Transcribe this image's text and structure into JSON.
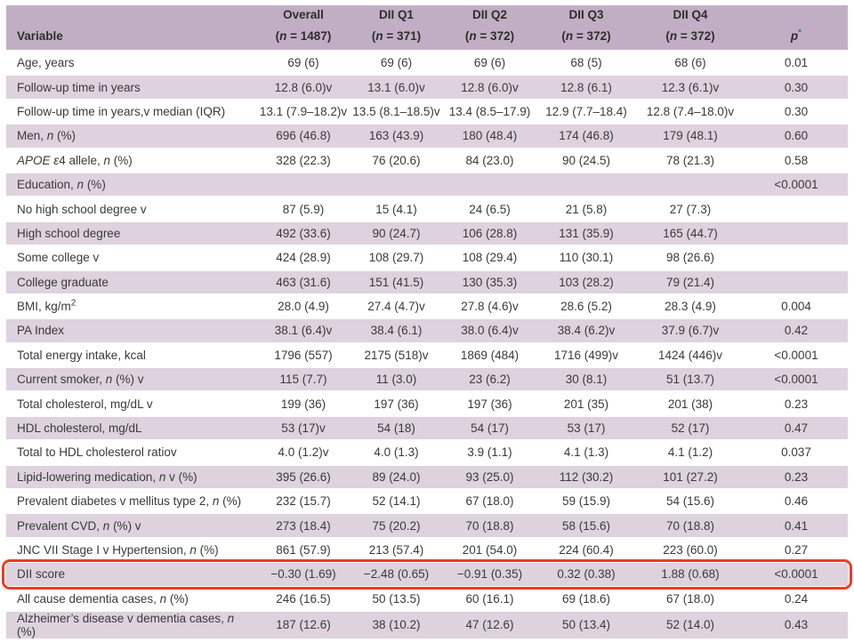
{
  "colors": {
    "header_bg": "#c2aec4",
    "stripe_bg": "#ddd2de",
    "row_bg": "#ffffff",
    "text": "#3a3a3a",
    "header_text": "#2d2d2d",
    "p_star_blue": "#2e74c0",
    "highlight_red": "#ef3b24"
  },
  "table": {
    "columns": [
      {
        "key": "variable",
        "line1": "",
        "line2": "Variable"
      },
      {
        "key": "overall",
        "line1": "Overall",
        "line2": "(*n* = 1487)"
      },
      {
        "key": "dii-q1",
        "line1": "DII Q1",
        "line2": "(*n* = 371)"
      },
      {
        "key": "dii-q2",
        "line1": "DII Q2",
        "line2": "(*n* = 372)"
      },
      {
        "key": "dii-q3",
        "line1": "DII Q3",
        "line2": "(*n* = 372)"
      },
      {
        "key": "dii-q4",
        "line1": "DII Q4",
        "line2": "(*n* = 372)"
      },
      {
        "key": "p",
        "line1": "",
        "line2": "*p*^*^"
      }
    ],
    "rows": [
      {
        "variable": "Age, years",
        "values": [
          "69 (6)",
          "69 (6)",
          "69 (6)",
          "68 (5)",
          "68 (6)"
        ],
        "p": "0.01",
        "highlight": false
      },
      {
        "variable": "Follow-up time in years",
        "values": [
          "12.8 (6.0)v",
          "13.1 (6.0)v",
          "12.8 (6.0)v",
          "12.8 (6.1)",
          "12.3 (6.1)v"
        ],
        "p": "0.30",
        "highlight": false
      },
      {
        "variable": "Follow-up time in years,v median (IQR)",
        "values": [
          "13.1 (7.9–18.2)v",
          "13.5 (8.1–18.5)v",
          "13.4 (8.5–17.9)",
          "12.9 (7.7–18.4)",
          "12.8 (7.4–18.0)v"
        ],
        "p": "0.30",
        "highlight": false
      },
      {
        "variable": "Men, *n* (%)",
        "values": [
          "696 (46.8)",
          "163 (43.9)",
          "180 (48.4)",
          "174 (46.8)",
          "179 (48.1)"
        ],
        "p": "0.60",
        "highlight": false
      },
      {
        "variable": "*APOE* *ε*4 allele, *n* (%)",
        "values": [
          "328 (22.3)",
          "76 (20.6)",
          "84 (23.0)",
          "90 (24.5)",
          "78 (21.3)"
        ],
        "p": "0.58",
        "highlight": false
      },
      {
        "variable": "Education, *n* (%)",
        "values": [
          "",
          "",
          "",
          "",
          ""
        ],
        "p": "<0.0001",
        "highlight": false
      },
      {
        "variable": "No high school degree v",
        "values": [
          "87 (5.9)",
          "15 (4.1)",
          "24 (6.5)",
          "21 (5.8)",
          "27 (7.3)"
        ],
        "p": "",
        "highlight": false
      },
      {
        "variable": "High school degree",
        "values": [
          "492 (33.6)",
          "90 (24.7)",
          "106 (28.8)",
          "131 (35.9)",
          "165 (44.7)"
        ],
        "p": "",
        "highlight": false
      },
      {
        "variable": "Some college v",
        "values": [
          "424 (28.9)",
          "108 (29.7)",
          "108 (29.4)",
          "110 (30.1)",
          "98 (26.6)"
        ],
        "p": "",
        "highlight": false
      },
      {
        "variable": "College graduate",
        "values": [
          "463 (31.6)",
          "151 (41.5)",
          "130 (35.3)",
          "103 (28.2)",
          "79 (21.4)"
        ],
        "p": "",
        "highlight": false
      },
      {
        "variable": "BMI, kg/m^2^",
        "values": [
          "28.0 (4.9)",
          "27.4 (4.7)v",
          "27.8 (4.6)v",
          "28.6 (5.2)",
          "28.3 (4.9)"
        ],
        "p": "0.004",
        "highlight": false
      },
      {
        "variable": "PA Index",
        "values": [
          "38.1 (6.4)v",
          "38.4 (6.1)",
          "38.0 (6.4)v",
          "38.4 (6.2)v",
          "37.9 (6.7)v"
        ],
        "p": "0.42",
        "highlight": false
      },
      {
        "variable": "Total energy intake, kcal",
        "values": [
          "1796 (557)",
          "2175 (518)v",
          "1869 (484)",
          "1716 (499)v",
          "1424 (446)v"
        ],
        "p": "<0.0001",
        "highlight": false
      },
      {
        "variable": "Current smoker, *n* (%) v",
        "values": [
          "115 (7.7)",
          "11 (3.0)",
          "23 (6.2)",
          "30 (8.1)",
          "51 (13.7)"
        ],
        "p": "<0.0001",
        "highlight": false
      },
      {
        "variable": "Total cholesterol, mg/dL v",
        "values": [
          "199 (36)",
          "197 (36)",
          "197 (36)",
          "201 (35)",
          "201 (38)"
        ],
        "p": "0.23",
        "highlight": false
      },
      {
        "variable": "HDL cholesterol, mg/dL",
        "values": [
          "53 (17)v",
          "54 (18)",
          "54 (17)",
          "53 (17)",
          "52 (17)"
        ],
        "p": "0.47",
        "highlight": false
      },
      {
        "variable": "Total to HDL cholesterol ratiov",
        "values": [
          "4.0 (1.2)v",
          "4.0 (1.3)",
          "3.9 (1.1)",
          "4.1 (1.3)",
          "4.1 (1.2)"
        ],
        "p": "0.037",
        "highlight": false
      },
      {
        "variable": "Lipid-lowering medication, *n* v (%)",
        "values": [
          "395 (26.6)",
          "89 (24.0)",
          "93 (25.0)",
          "112 (30.2)",
          "101 (27.2)"
        ],
        "p": "0.23",
        "highlight": false
      },
      {
        "variable": "Prevalent diabetes v mellitus type 2, *n* (%)",
        "values": [
          "232 (15.7)",
          "52 (14.1)",
          "67 (18.0)",
          "59 (15.9)",
          "54 (15.6)"
        ],
        "p": "0.46",
        "highlight": false
      },
      {
        "variable": "Prevalent CVD, *n* (%) v",
        "values": [
          "273 (18.4)",
          "75 (20.2)",
          "70 (18.8)",
          "58 (15.6)",
          "70 (18.8)"
        ],
        "p": "0.41",
        "highlight": false
      },
      {
        "variable": "JNC VII Stage I v Hypertension, *n* (%)",
        "values": [
          "861 (57.9)",
          "213 (57.4)",
          "201 (54.0)",
          "224 (60.4)",
          "223 (60.0)"
        ],
        "p": "0.27",
        "highlight": false
      },
      {
        "variable": "DII score",
        "values": [
          "−0.30 (1.69)",
          "−2.48 (0.65)",
          "−0.91 (0.35)",
          "0.32 (0.38)",
          "1.88 (0.68)"
        ],
        "p": "<0.0001",
        "highlight": true
      },
      {
        "variable": "All cause dementia cases, *n* (%)",
        "values": [
          "246 (16.5)",
          "50 (13.5)",
          "60 (16.1)",
          "69 (18.6)",
          "67 (18.0)"
        ],
        "p": "0.24",
        "highlight": false
      },
      {
        "variable": "Alzheimer’s disease v dementia cases, *n* (%)",
        "values": [
          "187 (12.6)",
          "38 (10.2)",
          "47 (12.6)",
          "50 (13.4)",
          "52 (14.0)"
        ],
        "p": "0.43",
        "highlight": false
      }
    ]
  }
}
